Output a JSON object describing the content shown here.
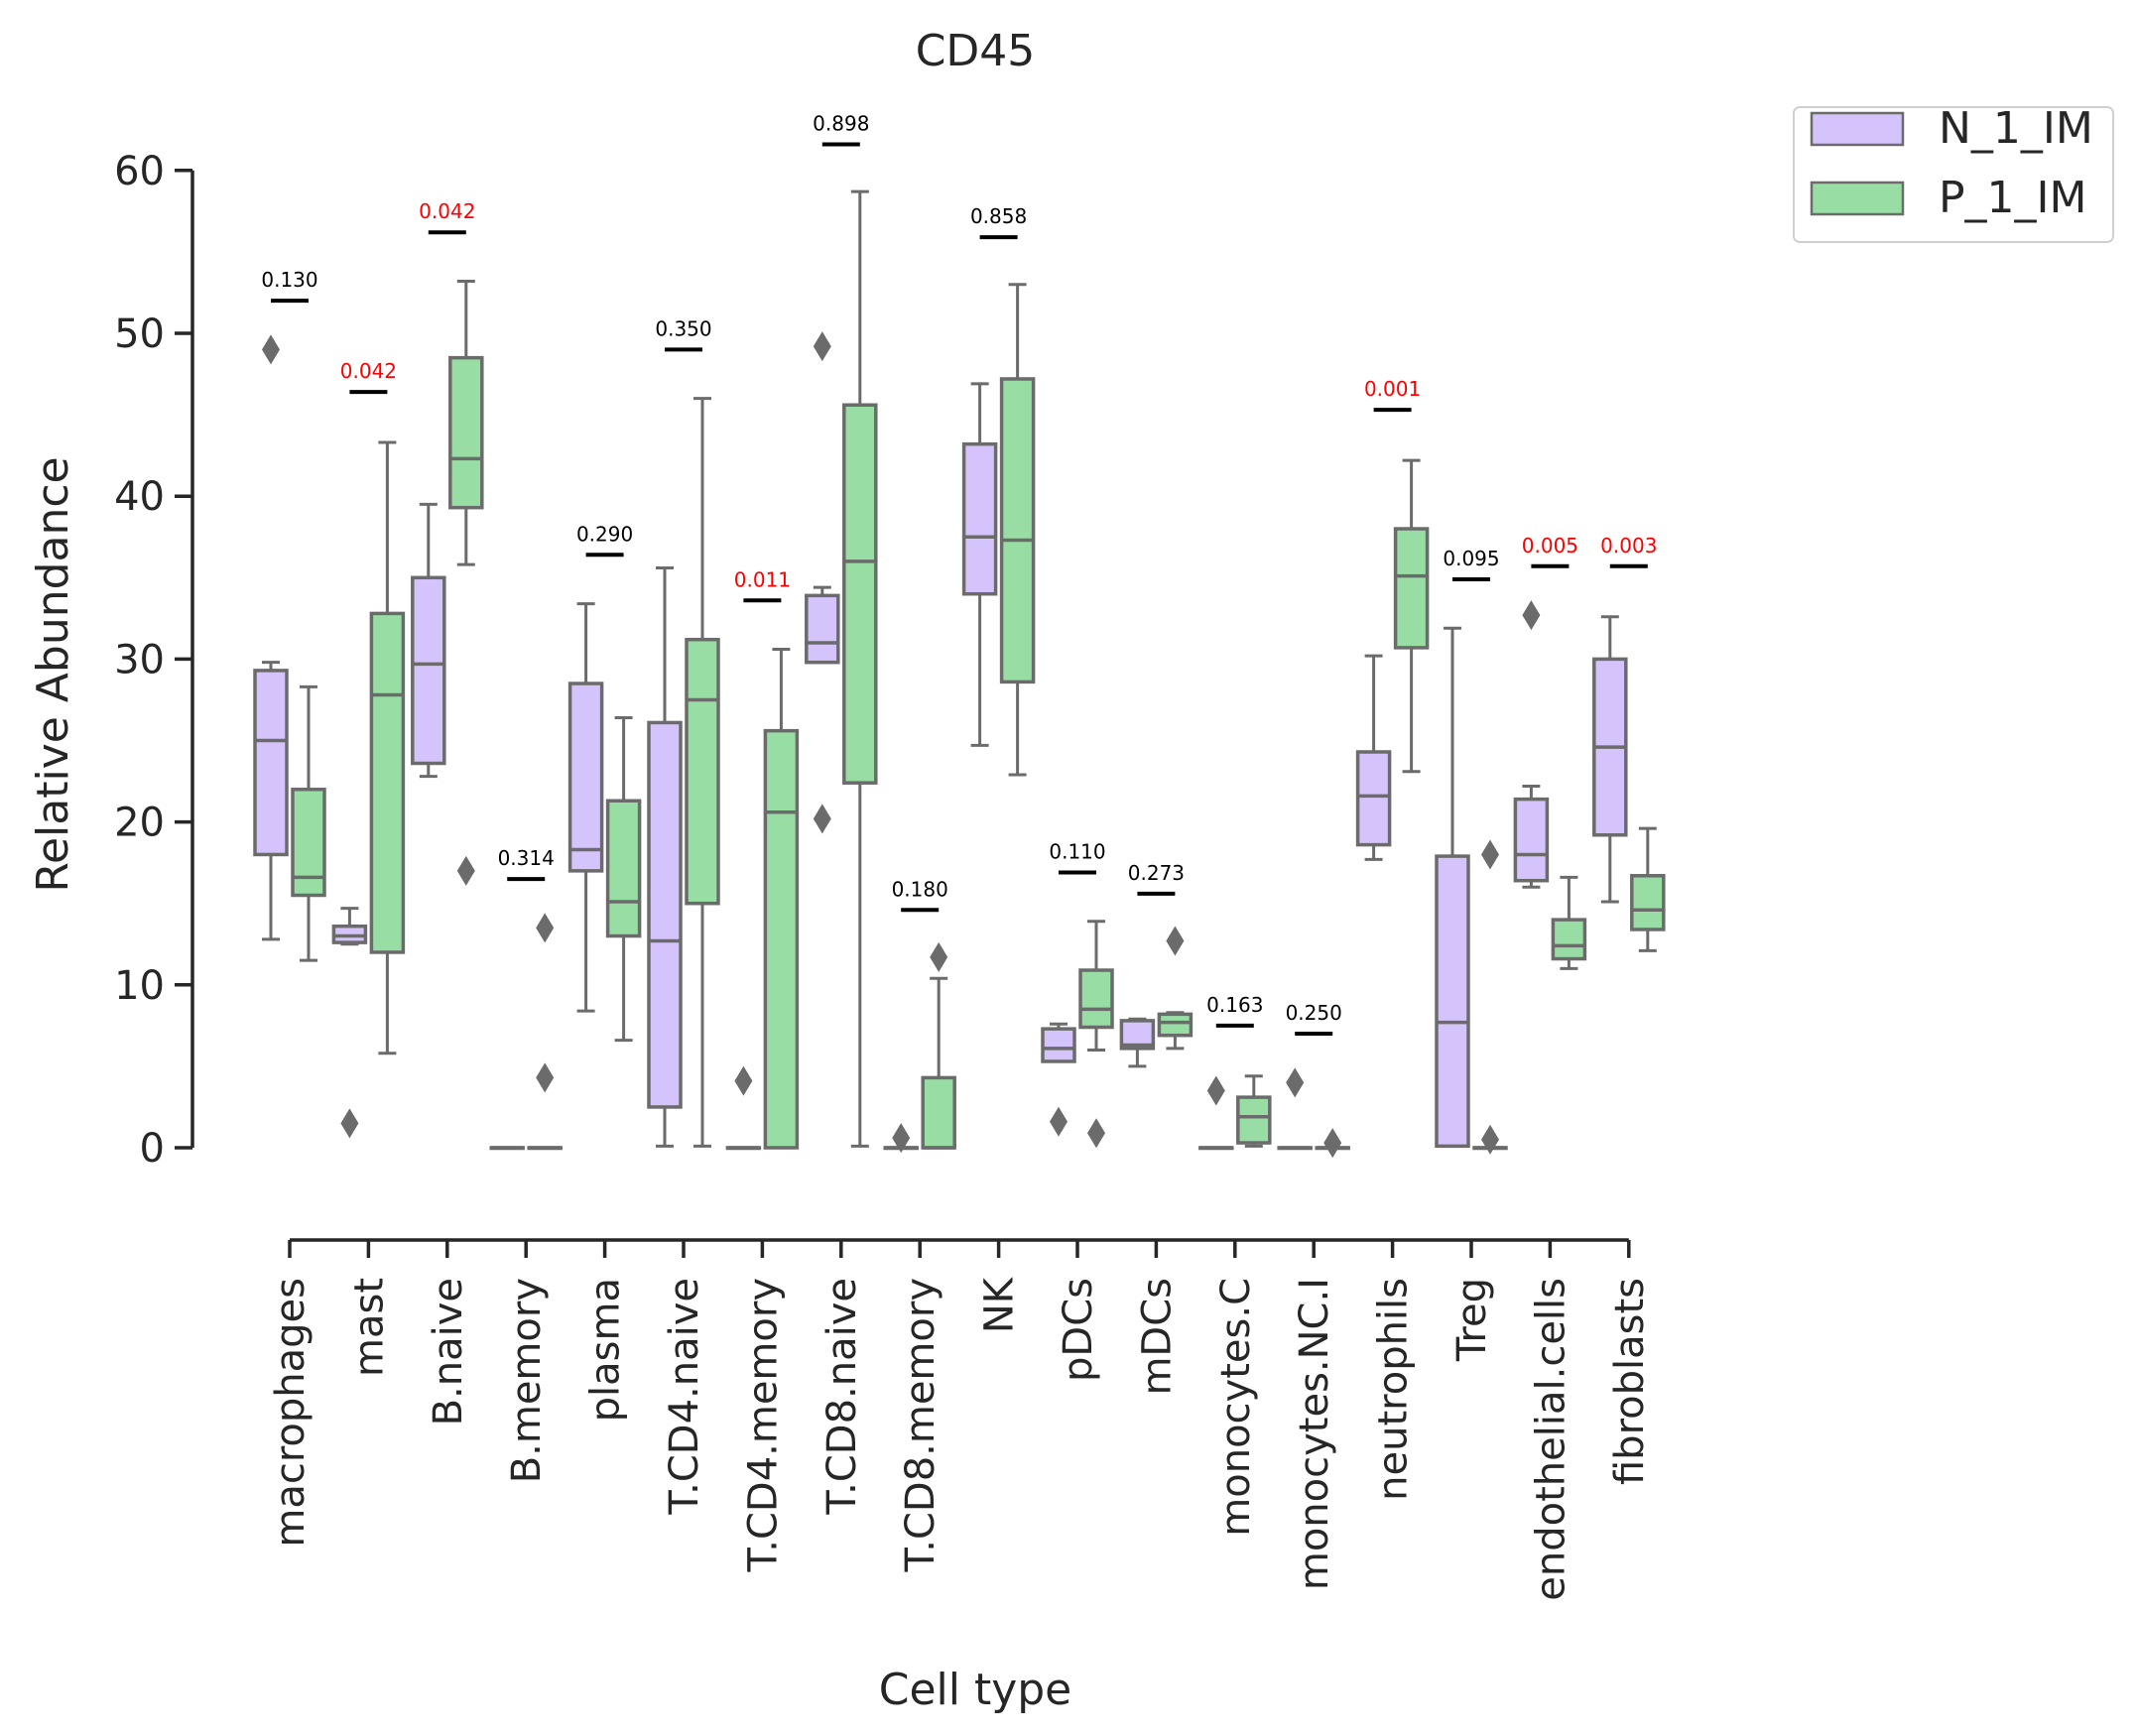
{
  "chart_data": {
    "type": "box",
    "title": "CD45",
    "xlabel": "Cell type",
    "ylabel": "Relative Abundance",
    "ylim": [
      -3,
      63
    ],
    "yticks": [
      0,
      10,
      20,
      30,
      40,
      50,
      60
    ],
    "categories": [
      "macrophages",
      "mast",
      "B.naive",
      "B.memory",
      "plasma",
      "T.CD4.naive",
      "T.CD4.memory",
      "T.CD8.naive",
      "T.CD8.memory",
      "NK",
      "pDCs",
      "mDCs",
      "monocytes.C",
      "monocytes.NC.I",
      "neutrophils",
      "Treg",
      "endothelial.cells",
      "fibroblasts"
    ],
    "legend_position": "outside-top-right",
    "series": [
      {
        "name": "N_1_IM",
        "color": "#d5c4fb",
        "boxes": [
          {
            "wl": 12.8,
            "q1": 18.0,
            "med": 25.0,
            "q3": 29.3,
            "wh": 29.8,
            "fliers": [
              49.0
            ]
          },
          {
            "wl": 12.5,
            "q1": 12.6,
            "med": 13.0,
            "q3": 13.6,
            "wh": 14.7,
            "fliers": [
              1.5
            ]
          },
          {
            "wl": 22.8,
            "q1": 23.6,
            "med": 29.7,
            "q3": 35.0,
            "wh": 39.5,
            "fliers": []
          },
          {
            "wl": 0,
            "q1": 0,
            "med": 0,
            "q3": 0,
            "wh": 0,
            "fliers": []
          },
          {
            "wl": 8.4,
            "q1": 17.0,
            "med": 18.3,
            "q3": 28.5,
            "wh": 33.4,
            "fliers": []
          },
          {
            "wl": 0.1,
            "q1": 2.5,
            "med": 12.7,
            "q3": 26.1,
            "wh": 35.6,
            "fliers": []
          },
          {
            "wl": 0,
            "q1": 0,
            "med": 0,
            "q3": 0,
            "wh": 0,
            "fliers": [
              4.1
            ]
          },
          {
            "wl": 29.8,
            "q1": 29.8,
            "med": 31.0,
            "q3": 33.9,
            "wh": 34.4,
            "fliers": [
              49.2,
              20.2
            ]
          },
          {
            "wl": 0,
            "q1": 0,
            "med": 0,
            "q3": 0,
            "wh": 0,
            "fliers": [
              0.6
            ]
          },
          {
            "wl": 24.7,
            "q1": 34.0,
            "med": 37.5,
            "q3": 43.2,
            "wh": 46.9,
            "fliers": []
          },
          {
            "wl": 5.3,
            "q1": 5.3,
            "med": 6.1,
            "q3": 7.3,
            "wh": 7.6,
            "fliers": [
              1.6
            ]
          },
          {
            "wl": 5.0,
            "q1": 6.1,
            "med": 6.3,
            "q3": 7.8,
            "wh": 7.9,
            "fliers": []
          },
          {
            "wl": 0,
            "q1": 0,
            "med": 0,
            "q3": 0,
            "wh": 0,
            "fliers": [
              3.5
            ]
          },
          {
            "wl": 0,
            "q1": 0,
            "med": 0,
            "q3": 0,
            "wh": 0,
            "fliers": [
              4.0
            ]
          },
          {
            "wl": 17.7,
            "q1": 18.6,
            "med": 21.6,
            "q3": 24.3,
            "wh": 30.2,
            "fliers": []
          },
          {
            "wl": 0.1,
            "q1": 0.1,
            "med": 7.7,
            "q3": 17.9,
            "wh": 31.9,
            "fliers": []
          },
          {
            "wl": 16.0,
            "q1": 16.4,
            "med": 18.0,
            "q3": 21.4,
            "wh": 22.2,
            "fliers": [
              32.7
            ]
          },
          {
            "wl": 15.1,
            "q1": 19.2,
            "med": 24.6,
            "q3": 30.0,
            "wh": 32.6,
            "fliers": []
          }
        ]
      },
      {
        "name": "P_1_IM",
        "color": "#98dea4",
        "boxes": [
          {
            "wl": 11.5,
            "q1": 15.5,
            "med": 16.6,
            "q3": 22.0,
            "wh": 28.3,
            "fliers": []
          },
          {
            "wl": 5.8,
            "q1": 12.0,
            "med": 27.8,
            "q3": 32.8,
            "wh": 43.3,
            "fliers": []
          },
          {
            "wl": 35.8,
            "q1": 39.3,
            "med": 42.3,
            "q3": 48.5,
            "wh": 53.2,
            "fliers": [
              17.0
            ]
          },
          {
            "wl": 0,
            "q1": 0,
            "med": 0,
            "q3": 0,
            "wh": 0,
            "fliers": [
              13.5,
              4.3
            ]
          },
          {
            "wl": 6.6,
            "q1": 13.0,
            "med": 15.1,
            "q3": 21.3,
            "wh": 26.4,
            "fliers": []
          },
          {
            "wl": 0.1,
            "q1": 15.0,
            "med": 27.5,
            "q3": 31.2,
            "wh": 46.0,
            "fliers": []
          },
          {
            "wl": 0,
            "q1": 0,
            "med": 20.6,
            "q3": 25.6,
            "wh": 30.6,
            "fliers": []
          },
          {
            "wl": 0.1,
            "q1": 22.4,
            "med": 36.0,
            "q3": 45.6,
            "wh": 58.7,
            "fliers": []
          },
          {
            "wl": 0,
            "q1": 0,
            "med": 0,
            "q3": 4.3,
            "wh": 10.4,
            "fliers": [
              11.7
            ]
          },
          {
            "wl": 22.9,
            "q1": 28.6,
            "med": 37.3,
            "q3": 47.2,
            "wh": 53.0,
            "fliers": []
          },
          {
            "wl": 6.0,
            "q1": 7.4,
            "med": 8.5,
            "q3": 10.9,
            "wh": 13.9,
            "fliers": [
              0.9
            ]
          },
          {
            "wl": 6.1,
            "q1": 6.9,
            "med": 7.7,
            "q3": 8.2,
            "wh": 8.3,
            "fliers": [
              12.7
            ]
          },
          {
            "wl": 0.1,
            "q1": 0.3,
            "med": 1.9,
            "q3": 3.1,
            "wh": 4.4,
            "fliers": []
          },
          {
            "wl": 0,
            "q1": 0,
            "med": 0,
            "q3": 0,
            "wh": 0,
            "fliers": [
              0.3
            ]
          },
          {
            "wl": 23.1,
            "q1": 30.7,
            "med": 35.1,
            "q3": 38.0,
            "wh": 42.2,
            "fliers": []
          },
          {
            "wl": 0,
            "q1": 0,
            "med": 0,
            "q3": 0,
            "wh": 0,
            "fliers": [
              18.0,
              0.5
            ]
          },
          {
            "wl": 11.0,
            "q1": 11.6,
            "med": 12.4,
            "q3": 14.0,
            "wh": 16.6,
            "fliers": []
          },
          {
            "wl": 12.1,
            "q1": 13.4,
            "med": 14.6,
            "q3": 16.7,
            "wh": 19.6,
            "fliers": []
          }
        ]
      }
    ],
    "pvalues": [
      {
        "label": "0.130",
        "y": 52.0,
        "significant": false
      },
      {
        "label": "0.042",
        "y": 46.4,
        "significant": true
      },
      {
        "label": "0.042",
        "y": 56.2,
        "significant": true
      },
      {
        "label": "0.314",
        "y": 16.5,
        "significant": false
      },
      {
        "label": "0.290",
        "y": 36.4,
        "significant": false
      },
      {
        "label": "0.350",
        "y": 49.0,
        "significant": false
      },
      {
        "label": "0.011",
        "y": 33.6,
        "significant": true
      },
      {
        "label": "0.898",
        "y": 61.6,
        "significant": false
      },
      {
        "label": "0.180",
        "y": 14.6,
        "significant": false
      },
      {
        "label": "0.858",
        "y": 55.9,
        "significant": false
      },
      {
        "label": "0.110",
        "y": 16.9,
        "significant": false
      },
      {
        "label": "0.273",
        "y": 15.6,
        "significant": false
      },
      {
        "label": "0.163",
        "y": 7.5,
        "significant": false
      },
      {
        "label": "0.250",
        "y": 7.0,
        "significant": false
      },
      {
        "label": "0.001",
        "y": 45.3,
        "significant": true
      },
      {
        "label": "0.095",
        "y": 34.9,
        "significant": false
      },
      {
        "label": "0.005",
        "y": 35.7,
        "significant": true
      },
      {
        "label": "0.003",
        "y": 35.7,
        "significant": true
      }
    ],
    "colors": {
      "box_edge": "#6b6b6b",
      "axis": "#262626",
      "pvalue_significant": "#ff0000",
      "pvalue_normal": "#000000"
    }
  }
}
